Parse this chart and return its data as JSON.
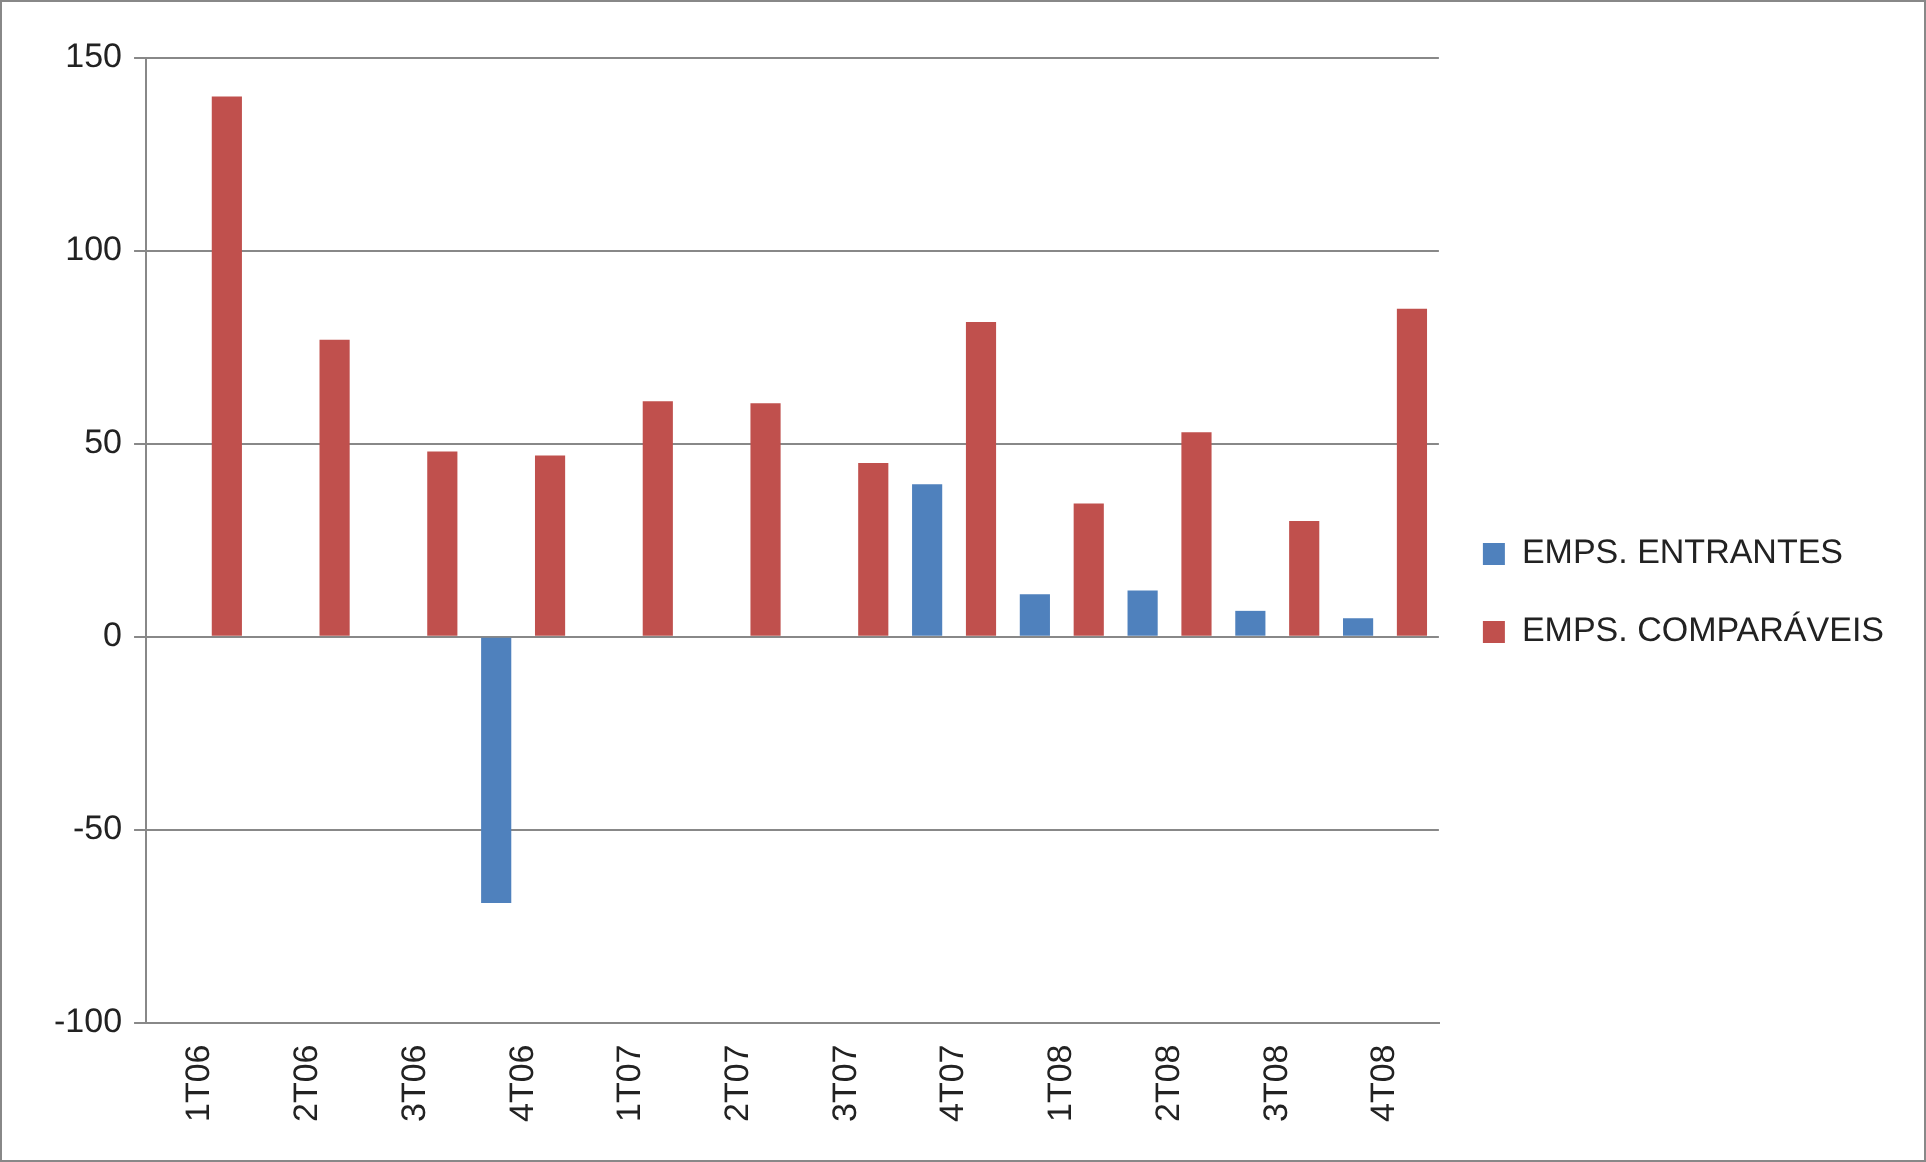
{
  "chart_data": {
    "type": "bar",
    "categories": [
      "1T06",
      "2T06",
      "3T06",
      "4T06",
      "1T07",
      "2T07",
      "3T07",
      "4T07",
      "1T08",
      "2T08",
      "3T08",
      "4T08"
    ],
    "series": [
      {
        "name": "EMPS. ENTRANTES",
        "color": "#4f81bd",
        "values": [
          null,
          null,
          null,
          -69,
          null,
          null,
          null,
          39.5,
          11,
          12,
          6.7,
          4.8
        ]
      },
      {
        "name": "EMPS. COMPARÁVEIS",
        "color": "#c0504d",
        "values": [
          140,
          77,
          48,
          47,
          61,
          60.5,
          45,
          81.6,
          34.5,
          53,
          30,
          85
        ]
      }
    ],
    "ylim": [
      -100,
      150
    ],
    "yticks": [
      -100,
      -50,
      0,
      50,
      100,
      150
    ],
    "grid": "y",
    "legend": "right"
  }
}
